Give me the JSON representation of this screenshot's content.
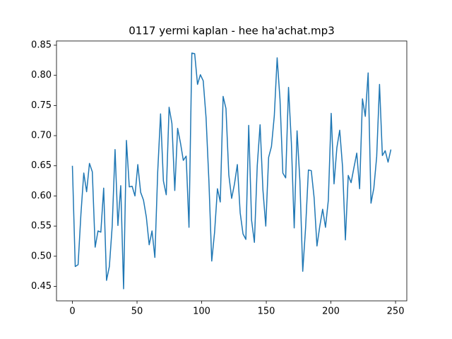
{
  "chart_data": {
    "type": "line",
    "title": "0117 yermi kaplan - hee ha'achat.mp3",
    "x": [
      0,
      2.2,
      4.4,
      6.6,
      8.8,
      11,
      13.2,
      15.4,
      17.6,
      19.8,
      22,
      24.2,
      26.4,
      28.6,
      30.8,
      33,
      35.2,
      37.4,
      39.6,
      41.8,
      44,
      46.2,
      48.4,
      50.6,
      52.8,
      55,
      57.2,
      59.4,
      61.6,
      63.8,
      66,
      68.2,
      70.4,
      72.6,
      74.8,
      77,
      79.2,
      81.4,
      83.6,
      85.8,
      88,
      90.2,
      92.4,
      94.6,
      96.8,
      99,
      101.2,
      103.4,
      105.6,
      107.8,
      110,
      112.2,
      114.4,
      116.6,
      118.8,
      121,
      123.2,
      125.4,
      127.6,
      129.8,
      132,
      134.2,
      136.4,
      138.6,
      140.8,
      143,
      145.2,
      147.4,
      149.6,
      151.8,
      154,
      156.2,
      158.4,
      160.6,
      162.8,
      165,
      167.2,
      169.4,
      171.6,
      173.8,
      176,
      178.2,
      180.4,
      182.6,
      184.8,
      187,
      189.2,
      191.4,
      193.6,
      195.8,
      198,
      200.2,
      202.4,
      204.6,
      206.8,
      209,
      211.2,
      213.4,
      215.6,
      217.8,
      220,
      222.2,
      224.4,
      226.6,
      228.8,
      231,
      233.2,
      235.4,
      237.6,
      239.8,
      242,
      244.2,
      246.4
    ],
    "series": [
      {
        "color": "#1f77b4",
        "values": [
          0.65,
          0.483,
          0.486,
          0.57,
          0.638,
          0.607,
          0.654,
          0.64,
          0.515,
          0.542,
          0.54,
          0.613,
          0.46,
          0.483,
          0.55,
          0.677,
          0.551,
          0.617,
          0.446,
          0.692,
          0.615,
          0.616,
          0.6,
          0.652,
          0.606,
          0.593,
          0.565,
          0.519,
          0.542,
          0.498,
          0.64,
          0.736,
          0.625,
          0.602,
          0.747,
          0.72,
          0.609,
          0.712,
          0.688,
          0.659,
          0.666,
          0.548,
          0.837,
          0.836,
          0.785,
          0.801,
          0.791,
          0.73,
          0.625,
          0.492,
          0.54,
          0.612,
          0.59,
          0.765,
          0.745,
          0.635,
          0.596,
          0.62,
          0.652,
          0.572,
          0.537,
          0.528,
          0.717,
          0.56,
          0.523,
          0.65,
          0.718,
          0.61,
          0.55,
          0.664,
          0.682,
          0.733,
          0.829,
          0.76,
          0.638,
          0.63,
          0.78,
          0.688,
          0.547,
          0.708,
          0.625,
          0.475,
          0.547,
          0.643,
          0.642,
          0.597,
          0.517,
          0.55,
          0.578,
          0.548,
          0.593,
          0.737,
          0.62,
          0.68,
          0.709,
          0.648,
          0.527,
          0.634,
          0.622,
          0.647,
          0.671,
          0.612,
          0.761,
          0.732,
          0.804,
          0.588,
          0.613,
          0.665,
          0.785,
          0.667,
          0.675,
          0.656,
          0.677
        ]
      }
    ],
    "xlim": [
      -12.3,
      258.7
    ],
    "ylim": [
      0.426,
      0.857
    ],
    "xticks": [
      0,
      50,
      100,
      150,
      200,
      250
    ],
    "yticks": [
      0.45,
      {
        "value": 0.5,
        "label": "0.50"
      },
      0.55,
      {
        "value": 0.6,
        "label": "0.60"
      },
      0.65,
      {
        "value": 0.7,
        "label": "0.70"
      },
      0.75,
      {
        "value": 0.8,
        "label": "0.80"
      },
      0.85
    ]
  }
}
